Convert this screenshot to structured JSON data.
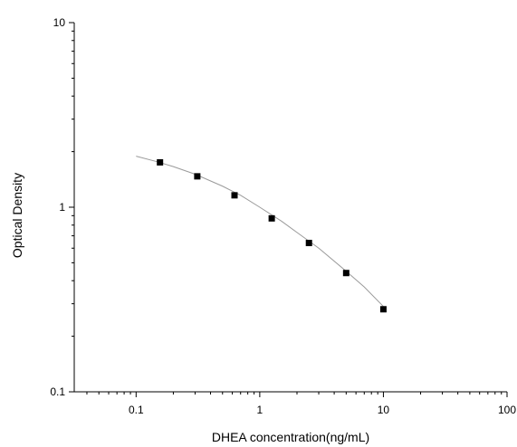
{
  "chart_data": {
    "type": "scatter",
    "title": "",
    "xlabel": "DHEA concentration(ng/mL)",
    "ylabel": "Optical Density",
    "x_scale": "log",
    "y_scale": "log",
    "xlim": [
      0.0316,
      100
    ],
    "ylim": [
      0.1,
      10
    ],
    "x_ticks": [
      {
        "value": 0.1,
        "label": "0.1"
      },
      {
        "value": 1,
        "label": "1"
      },
      {
        "value": 10,
        "label": "10"
      },
      {
        "value": 100,
        "label": "100"
      }
    ],
    "y_ticks": [
      {
        "value": 0.1,
        "label": "0.1"
      },
      {
        "value": 1,
        "label": "1"
      },
      {
        "value": 10,
        "label": "10"
      }
    ],
    "grid": false,
    "legend": "none",
    "series": [
      {
        "x": [
          0.156,
          0.3125,
          0.625,
          1.25,
          2.5,
          5,
          10
        ],
        "y": [
          1.75,
          1.47,
          1.16,
          0.87,
          0.64,
          0.44,
          0.28
        ],
        "marker": "square",
        "color": "#000000"
      }
    ],
    "fit_curve": {
      "x": [
        0.1,
        0.15,
        0.2,
        0.3,
        0.5,
        0.7,
        1,
        1.5,
        2,
        3,
        5,
        7,
        10
      ],
      "y": [
        1.89,
        1.76,
        1.66,
        1.51,
        1.3,
        1.16,
        1.0,
        0.84,
        0.73,
        0.6,
        0.45,
        0.37,
        0.29
      ],
      "color": "#9a9a9a"
    }
  }
}
